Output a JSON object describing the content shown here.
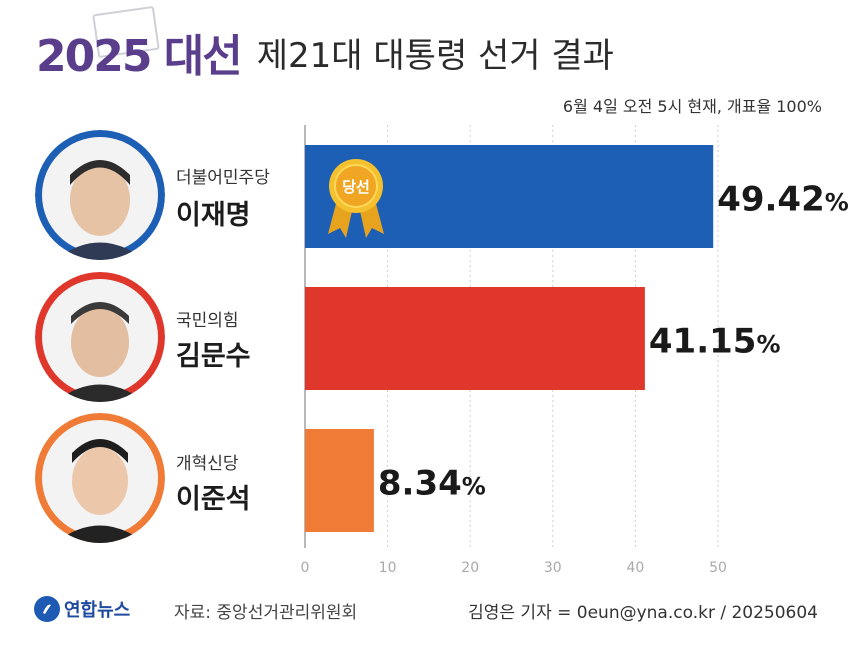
{
  "header": {
    "title_year": "2025 대선",
    "title_main": "제21대 대통령 선거 결과",
    "subtitle": "6월 4일 오전 5시 현재, 개표율 100%"
  },
  "candidates": [
    {
      "party": "더불어민주당",
      "name": "이재명",
      "color": "#1c5fb5",
      "ring": "#1c5fb5",
      "badge": "당선"
    },
    {
      "party": "국민의힘",
      "name": "김문수",
      "color": "#e0372c",
      "ring": "#e0372c"
    },
    {
      "party": "개혁신당",
      "name": "이준석",
      "color": "#ef7b36",
      "ring": "#ef7b36"
    }
  ],
  "chart_data": {
    "type": "bar",
    "orientation": "horizontal",
    "categories": [
      "이재명",
      "김문수",
      "이준석"
    ],
    "values": [
      49.42,
      41.15,
      8.34
    ],
    "value_labels": [
      "49.42",
      "41.15",
      "8.34"
    ],
    "unit": "%",
    "colors": [
      "#1c5fb5",
      "#e0372c",
      "#ef7b36"
    ],
    "xlim": [
      0,
      50
    ],
    "xticks": [
      "0",
      "10",
      "20",
      "30",
      "40",
      "50"
    ],
    "grid": true
  },
  "footer": {
    "logo_text": "연합뉴스",
    "source": "자료: 중앙선거관리위원회",
    "credit": "김영은 기자 = 0eun@yna.co.kr / 20250604"
  }
}
